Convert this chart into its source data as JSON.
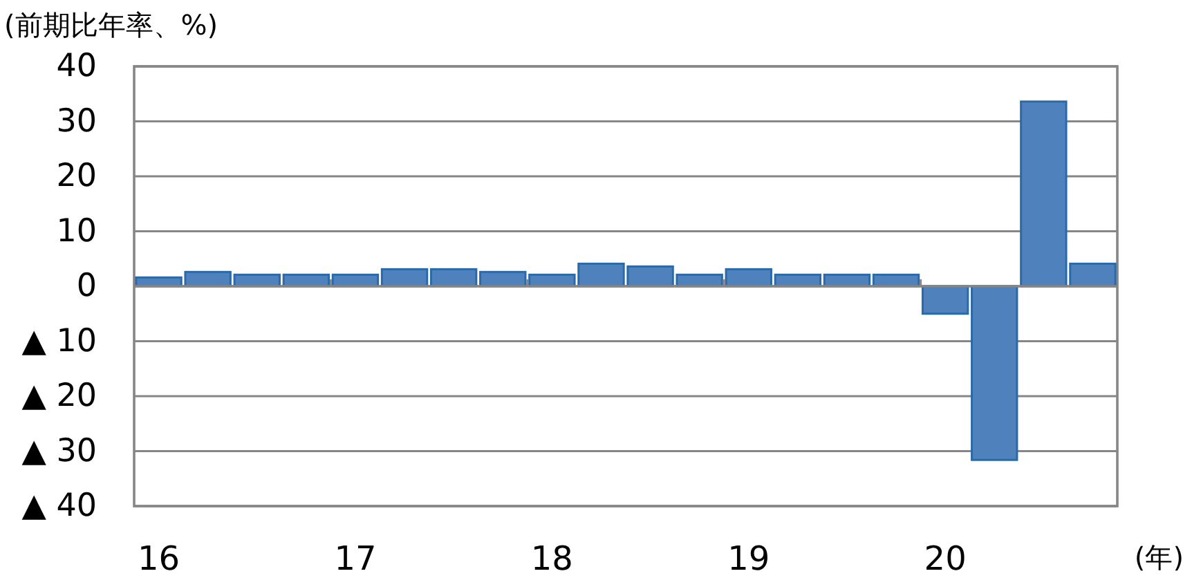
{
  "chart_data": {
    "type": "bar",
    "ylabel": "(前期比年率、%)",
    "xlabel": "(年)",
    "categories": [
      "16",
      null,
      null,
      null,
      "17",
      null,
      null,
      null,
      "18",
      null,
      null,
      null,
      "19",
      null,
      null,
      null,
      "20",
      null,
      null,
      null
    ],
    "values": [
      1.6,
      2.6,
      2.1,
      2.1,
      2.1,
      3.1,
      3.1,
      2.6,
      2.1,
      4.1,
      3.6,
      2.1,
      3.1,
      2.1,
      2.1,
      2.1,
      -5.0,
      -31.6,
      33.6,
      4.1
    ],
    "color": "#4f81bd",
    "ylim": [
      -40,
      40
    ],
    "yticks": [
      {
        "value": -40,
        "label": "▲ 40"
      },
      {
        "value": -30,
        "label": "▲ 30"
      },
      {
        "value": -20,
        "label": "▲ 20"
      },
      {
        "value": -10,
        "label": "▲ 10"
      },
      0,
      10,
      20,
      30,
      40
    ],
    "grid": "y"
  }
}
